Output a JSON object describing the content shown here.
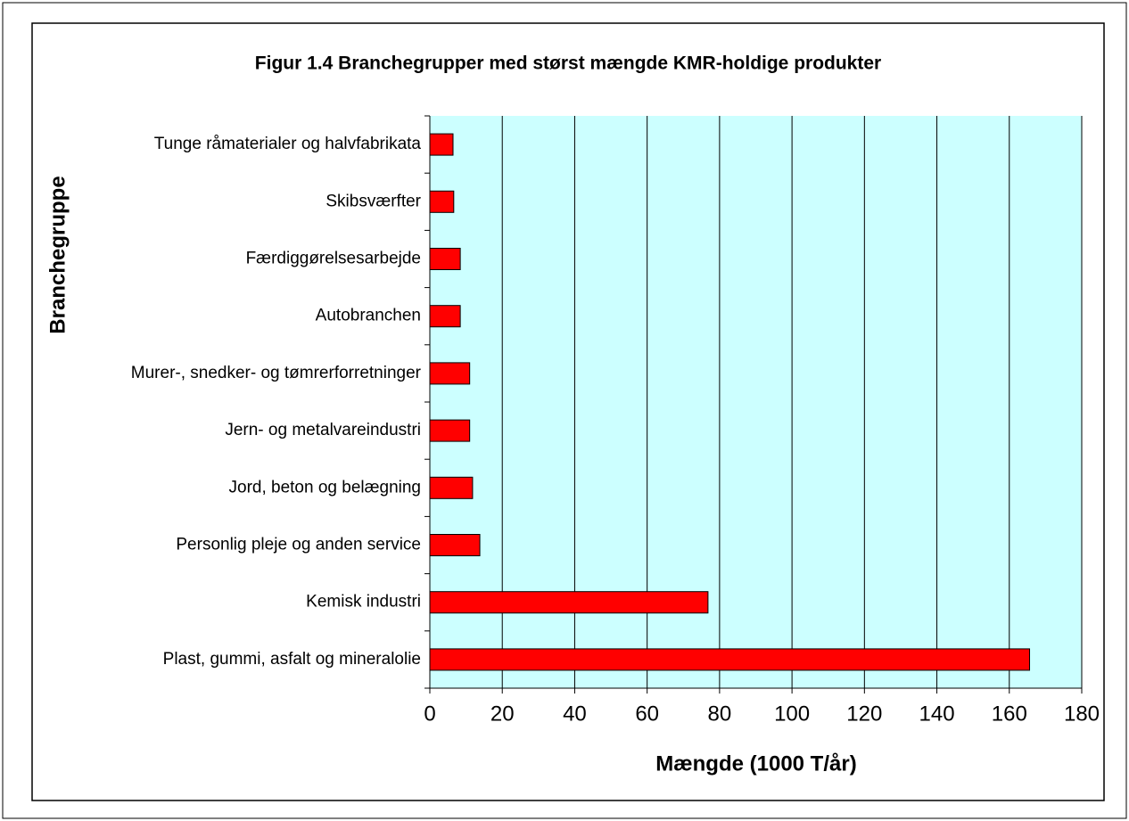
{
  "chart_data": {
    "type": "bar",
    "orientation": "horizontal",
    "title": "Figur 1.4 Branchegrupper med størst mængde KMR-holdige produkter",
    "x_label": "Mængde (1000 T/år)",
    "y_label": "Branchegruppe",
    "categories": [
      "Tunge råmaterialer og halvfabrikata",
      "Skibsværfter",
      "Færdiggørelsesarbejde",
      "Autobranchen",
      "Murer-, snedker- og tømrerforretninger",
      "Jern- og metalvareindustri",
      "Jord, beton og belægning",
      "Personlig pleje og anden service",
      "Kemisk industri",
      "Plast, gummi, asfalt og mineralolie"
    ],
    "values": [
      6.4,
      6.6,
      8.4,
      8.4,
      11,
      11,
      11.8,
      13.8,
      76.8,
      165.6
    ],
    "color": "#ff0000",
    "plot_background": "#ccffff",
    "xlim": [
      0,
      180
    ],
    "xticks": [
      0,
      20,
      40,
      60,
      80,
      100,
      120,
      140,
      160,
      180
    ],
    "grid": true
  }
}
